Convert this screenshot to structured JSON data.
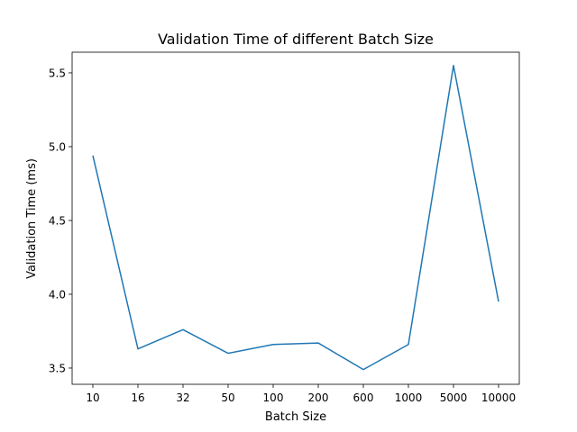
{
  "chart_data": {
    "type": "line",
    "title": "Validation Time of different Batch Size",
    "xlabel": "Batch Size",
    "ylabel": "Validation Time (ms)",
    "categories": [
      "10",
      "16",
      "32",
      "50",
      "100",
      "200",
      "600",
      "1000",
      "5000",
      "10000"
    ],
    "series": [
      {
        "values": [
          4.94,
          3.63,
          3.76,
          3.6,
          3.66,
          3.67,
          3.49,
          3.66,
          5.55,
          3.95
        ],
        "color": "#1f77b4"
      }
    ],
    "ylim": [
      3.39,
      5.64
    ],
    "yticks": [
      3.5,
      4.0,
      4.5,
      5.0,
      5.5
    ],
    "ytick_labels": [
      "3.5",
      "4.0",
      "4.5",
      "5.0",
      "5.5"
    ],
    "grid": false,
    "legend": "none"
  }
}
